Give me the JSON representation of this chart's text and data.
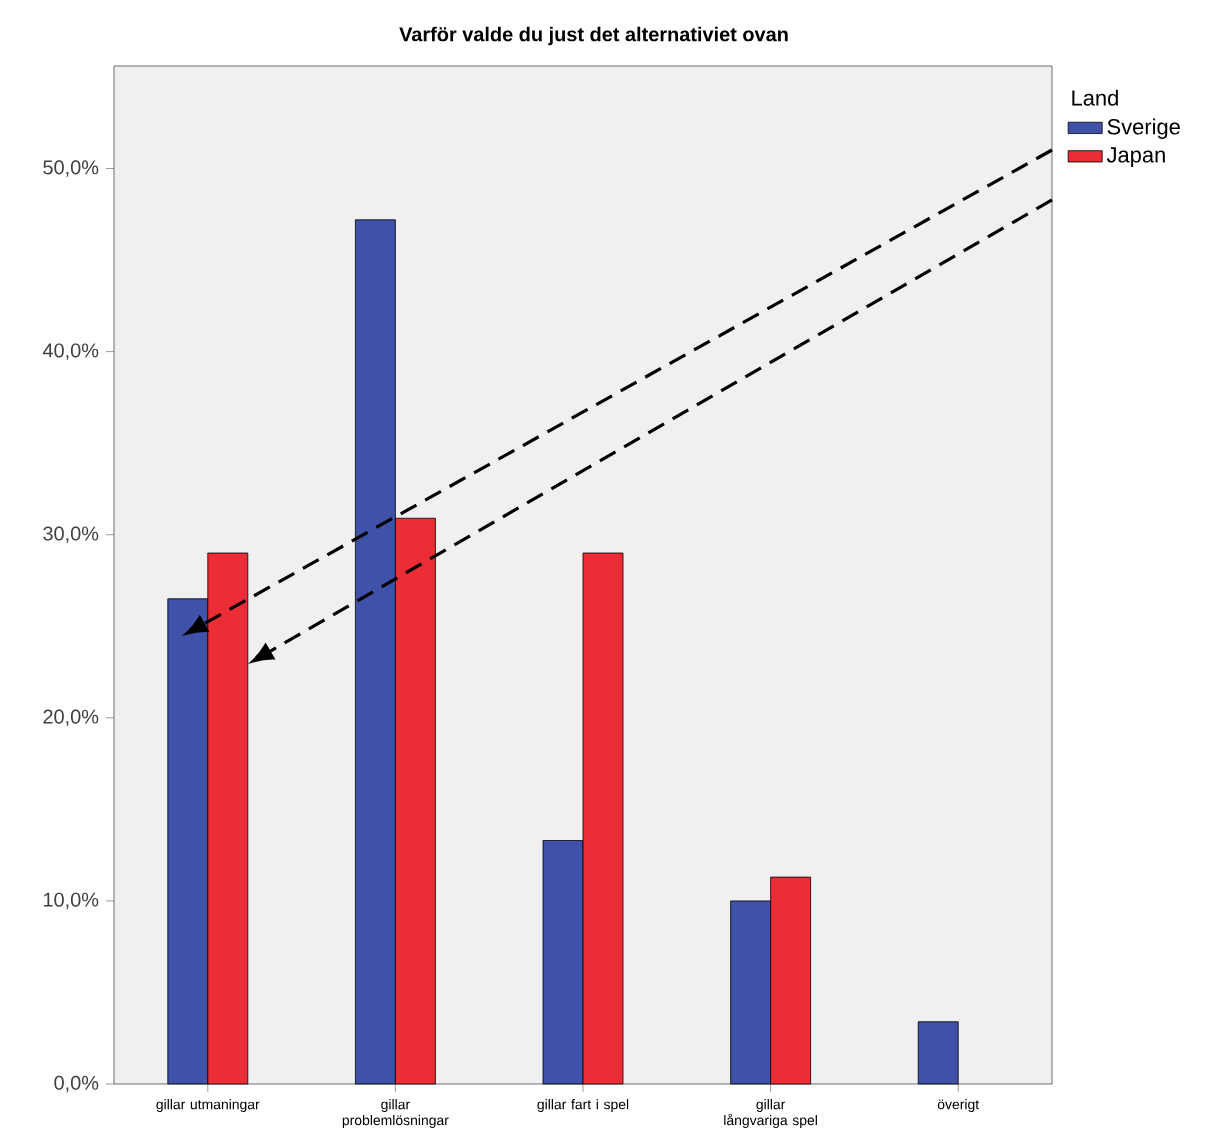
{
  "chart_data": {
    "type": "bar",
    "title": "Varför valde du just det alternativiet ovan",
    "legend_title": "Land",
    "categories": [
      "gillar utmaningar",
      "gillar problemlösningar",
      "gillar fart i spel",
      "gillar långvariga spel",
      "överigt"
    ],
    "series": [
      {
        "name": "Sverige",
        "color": "#3f51a8",
        "values": [
          26.5,
          47.2,
          13.3,
          10.0,
          3.4
        ]
      },
      {
        "name": "Japan",
        "color": "#ec2d35",
        "values": [
          29.0,
          30.9,
          29.0,
          11.3,
          null
        ]
      }
    ],
    "ylim": [
      0,
      55.6
    ],
    "yticks": [
      {
        "value": 0,
        "label": "0,0%"
      },
      {
        "value": 10,
        "label": "10,0%"
      },
      {
        "value": 20,
        "label": "20,0%"
      },
      {
        "value": 30,
        "label": "30,0%"
      },
      {
        "value": 40,
        "label": "40,0%"
      },
      {
        "value": 50,
        "label": "50,0%"
      }
    ],
    "legend": "top right"
  }
}
